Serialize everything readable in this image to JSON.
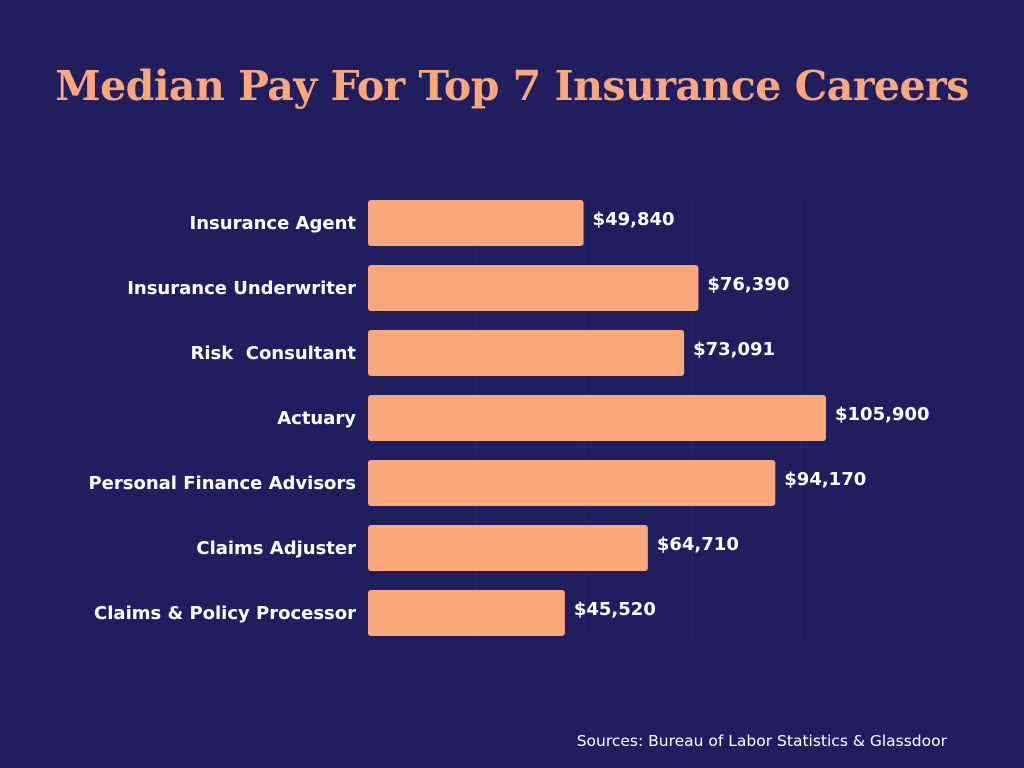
{
  "chart_data": {
    "type": "bar",
    "orientation": "horizontal",
    "title": "Median Pay For Top 7 Insurance Careers",
    "categories": [
      "Insurance Agent",
      "Insurance Underwriter",
      "Risk  Consultant",
      "Actuary",
      "Personal Finance Advisors",
      "Claims Adjuster",
      "Claims & Policy Processor"
    ],
    "values": [
      49840,
      76390,
      73091,
      105900,
      94170,
      64710,
      45520
    ],
    "value_labels": [
      "$49,840",
      "$76,390",
      "$73,091",
      "$105,900",
      "$94,170",
      "$64,710",
      "$45,520"
    ],
    "xlim": [
      0,
      120000
    ],
    "xlabel": "",
    "ylabel": "",
    "grid": true,
    "bar_color": "#fba77c",
    "label_color": "#ffffff"
  },
  "source": "Sources: Bureau of Labor Statistics & Glassdoor",
  "colors": {
    "background": "#201e5f",
    "accent": "#fba77c",
    "grid": "#29276b",
    "text": "#ffffff"
  }
}
